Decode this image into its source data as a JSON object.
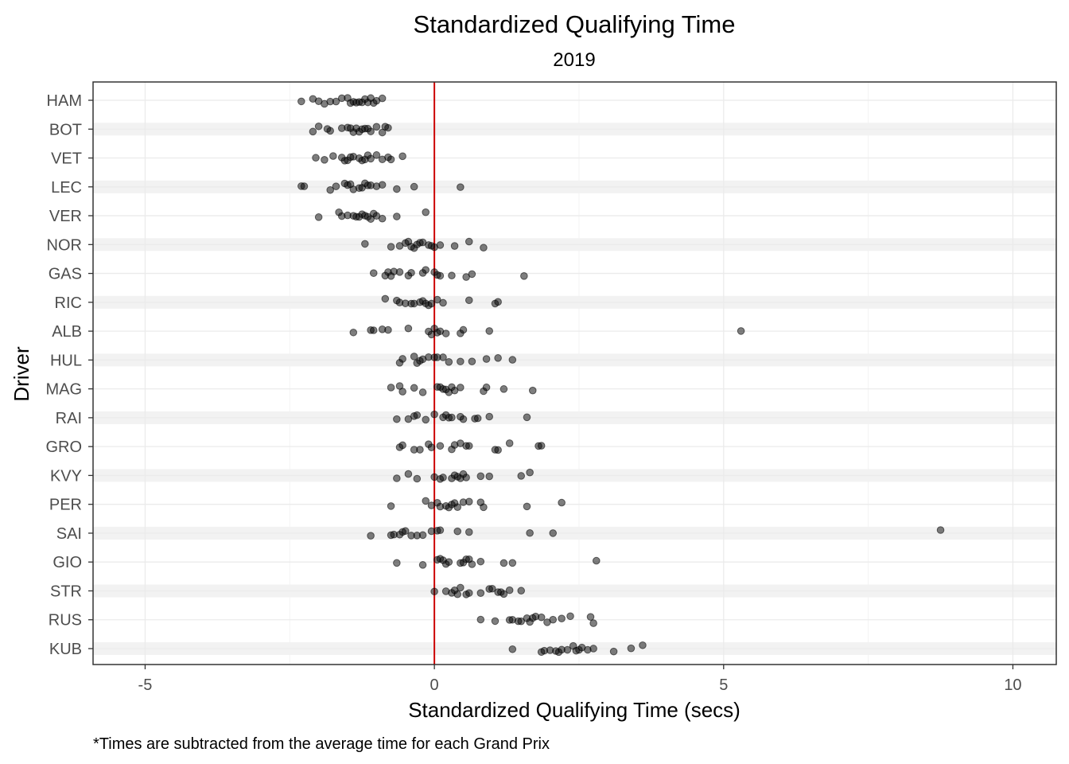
{
  "chart_data": {
    "type": "scatter",
    "title": "Standardized Qualifying Time",
    "subtitle": "2019",
    "xlabel": "Standardized Qualifying Time (secs)",
    "ylabel": "Driver",
    "caption": "*Times are subtracted from the average time for each Grand Prix",
    "xlim": [
      -5.9,
      10.75
    ],
    "xticks": [
      -5,
      0,
      5,
      10
    ],
    "xtick_labels": [
      "-5",
      "0",
      "5",
      "10"
    ],
    "reference_line": {
      "x": 0,
      "color": "#cc0000"
    },
    "grid": true,
    "categories": [
      "HAM",
      "BOT",
      "VET",
      "LEC",
      "VER",
      "NOR",
      "GAS",
      "RIC",
      "ALB",
      "HUL",
      "MAG",
      "RAI",
      "GRO",
      "KVY",
      "PER",
      "SAI",
      "GIO",
      "STR",
      "RUS",
      "KUB"
    ],
    "points": [
      {
        "driver": "HAM",
        "x": [
          -2.3,
          -2.1,
          -2.0,
          -1.9,
          -1.8,
          -1.7,
          -1.5,
          -1.45,
          -1.4,
          -1.35,
          -1.3,
          -1.2,
          -1.15,
          -1.1,
          -1.0,
          -0.9,
          -1.6,
          -1.25,
          -1.05
        ]
      },
      {
        "driver": "BOT",
        "x": [
          -2.1,
          -2.0,
          -1.85,
          -1.8,
          -1.6,
          -1.5,
          -1.45,
          -1.4,
          -1.3,
          -1.2,
          -1.15,
          -1.1,
          -1.0,
          -0.85,
          -0.8,
          -1.35,
          -1.25,
          -0.9
        ]
      },
      {
        "driver": "VET",
        "x": [
          -2.05,
          -1.9,
          -1.75,
          -1.6,
          -1.55,
          -1.5,
          -1.4,
          -1.3,
          -1.25,
          -1.2,
          -1.15,
          -1.1,
          -1.0,
          -0.9,
          -0.8,
          -0.75,
          -0.55,
          -1.45
        ]
      },
      {
        "driver": "LEC",
        "x": [
          -2.3,
          -2.25,
          -1.8,
          -1.7,
          -1.55,
          -1.5,
          -1.45,
          -1.3,
          -1.2,
          -1.15,
          -1.1,
          -1.0,
          -0.9,
          -0.65,
          -0.35,
          0.45,
          -1.4,
          -1.25
        ]
      },
      {
        "driver": "VER",
        "x": [
          -2.0,
          -1.65,
          -1.6,
          -1.5,
          -1.4,
          -1.3,
          -1.25,
          -1.2,
          -1.1,
          -1.05,
          -1.0,
          -0.9,
          -0.65,
          -0.15,
          -1.35,
          -1.15
        ]
      },
      {
        "driver": "NOR",
        "x": [
          -1.2,
          -0.75,
          -0.6,
          -0.5,
          -0.4,
          -0.35,
          -0.3,
          -0.2,
          -0.1,
          -0.05,
          0.0,
          0.1,
          0.35,
          0.6,
          0.85,
          -0.45,
          -0.25
        ]
      },
      {
        "driver": "GAS",
        "x": [
          -1.05,
          -0.85,
          -0.8,
          -0.75,
          -0.7,
          -0.45,
          -0.4,
          -0.2,
          -0.15,
          0.0,
          0.05,
          0.1,
          0.3,
          0.55,
          0.65,
          1.55,
          -0.6
        ]
      },
      {
        "driver": "RIC",
        "x": [
          -0.85,
          -0.65,
          -0.6,
          -0.5,
          -0.4,
          -0.35,
          -0.25,
          -0.15,
          -0.1,
          -0.05,
          0.05,
          0.15,
          0.6,
          1.05,
          1.1,
          -0.2
        ]
      },
      {
        "driver": "ALB",
        "x": [
          -1.4,
          -1.1,
          -1.05,
          -0.9,
          -0.8,
          -0.45,
          -0.1,
          -0.05,
          0.05,
          0.1,
          0.2,
          0.45,
          0.5,
          0.95,
          5.3,
          0.0
        ]
      },
      {
        "driver": "HUL",
        "x": [
          -0.6,
          -0.55,
          -0.35,
          -0.25,
          -0.2,
          -0.1,
          0.0,
          0.05,
          0.15,
          0.25,
          0.45,
          0.65,
          0.9,
          1.1,
          1.35,
          -0.3
        ]
      },
      {
        "driver": "MAG",
        "x": [
          -0.75,
          -0.6,
          -0.55,
          -0.35,
          -0.2,
          0.05,
          0.1,
          0.2,
          0.25,
          0.3,
          0.35,
          0.45,
          0.85,
          0.9,
          1.2,
          1.7,
          0.15
        ]
      },
      {
        "driver": "RAI",
        "x": [
          -0.65,
          -0.45,
          -0.35,
          -0.3,
          -0.15,
          0.0,
          0.2,
          0.25,
          0.3,
          0.45,
          0.5,
          0.7,
          0.75,
          0.95,
          1.6,
          0.15
        ]
      },
      {
        "driver": "GRO",
        "x": [
          -0.6,
          -0.55,
          -0.35,
          -0.25,
          -0.05,
          0.1,
          0.3,
          0.35,
          0.45,
          0.55,
          0.6,
          1.05,
          1.1,
          1.3,
          1.8,
          1.85,
          -0.1
        ]
      },
      {
        "driver": "KVY",
        "x": [
          -0.65,
          -0.45,
          -0.3,
          0.0,
          0.1,
          0.15,
          0.35,
          0.4,
          0.45,
          0.5,
          0.55,
          0.8,
          0.95,
          1.5,
          1.65,
          0.3
        ]
      },
      {
        "driver": "PER",
        "x": [
          -0.75,
          -0.15,
          -0.05,
          0.05,
          0.1,
          0.2,
          0.25,
          0.3,
          0.4,
          0.5,
          0.6,
          0.8,
          0.85,
          1.6,
          2.2,
          0.35
        ]
      },
      {
        "driver": "SAI",
        "x": [
          -1.1,
          -0.75,
          -0.7,
          -0.6,
          -0.5,
          -0.4,
          -0.3,
          -0.2,
          -0.05,
          0.05,
          0.1,
          0.4,
          0.6,
          1.65,
          2.05,
          8.75,
          -0.55
        ]
      },
      {
        "driver": "GIO",
        "x": [
          -0.65,
          -0.2,
          0.05,
          0.1,
          0.15,
          0.2,
          0.25,
          0.45,
          0.5,
          0.6,
          0.65,
          0.8,
          1.2,
          1.35,
          2.8,
          0.55
        ]
      },
      {
        "driver": "STR",
        "x": [
          0.0,
          0.2,
          0.3,
          0.35,
          0.45,
          0.55,
          0.6,
          0.8,
          0.95,
          1.0,
          1.15,
          1.2,
          1.3,
          1.5,
          0.4,
          1.1
        ]
      },
      {
        "driver": "RUS",
        "x": [
          0.8,
          1.05,
          1.3,
          1.35,
          1.45,
          1.5,
          1.6,
          1.7,
          1.75,
          1.85,
          1.95,
          2.05,
          2.2,
          2.35,
          2.7,
          2.75,
          1.65
        ]
      },
      {
        "driver": "KUB",
        "x": [
          1.35,
          1.85,
          1.9,
          2.0,
          2.1,
          2.15,
          2.2,
          2.3,
          2.4,
          2.45,
          2.55,
          2.65,
          2.75,
          3.1,
          3.4,
          3.6,
          2.5
        ]
      }
    ]
  }
}
